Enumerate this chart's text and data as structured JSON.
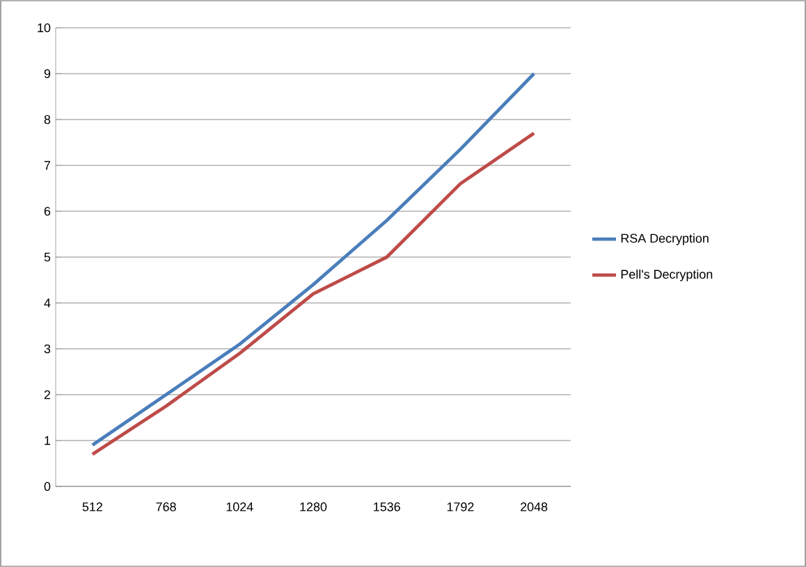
{
  "chart_data": {
    "type": "line",
    "categories": [
      "512",
      "768",
      "1024",
      "1280",
      "1536",
      "1792",
      "2048"
    ],
    "series": [
      {
        "name": "RSA Decryption",
        "color": "#4a7ebb",
        "values": [
          0.9,
          2.0,
          3.1,
          4.4,
          5.8,
          7.35,
          9.0
        ]
      },
      {
        "name": "Pell's Decryption",
        "color": "#be4b48",
        "values": [
          0.7,
          1.75,
          2.9,
          4.2,
          5.0,
          6.6,
          7.7
        ]
      }
    ],
    "ylim": [
      0,
      10
    ],
    "yticks": [
      0,
      1,
      2,
      3,
      4,
      5,
      6,
      7,
      8,
      9,
      10
    ],
    "grid": "y",
    "legend": "right",
    "marker": "none",
    "line_style": "solid"
  }
}
